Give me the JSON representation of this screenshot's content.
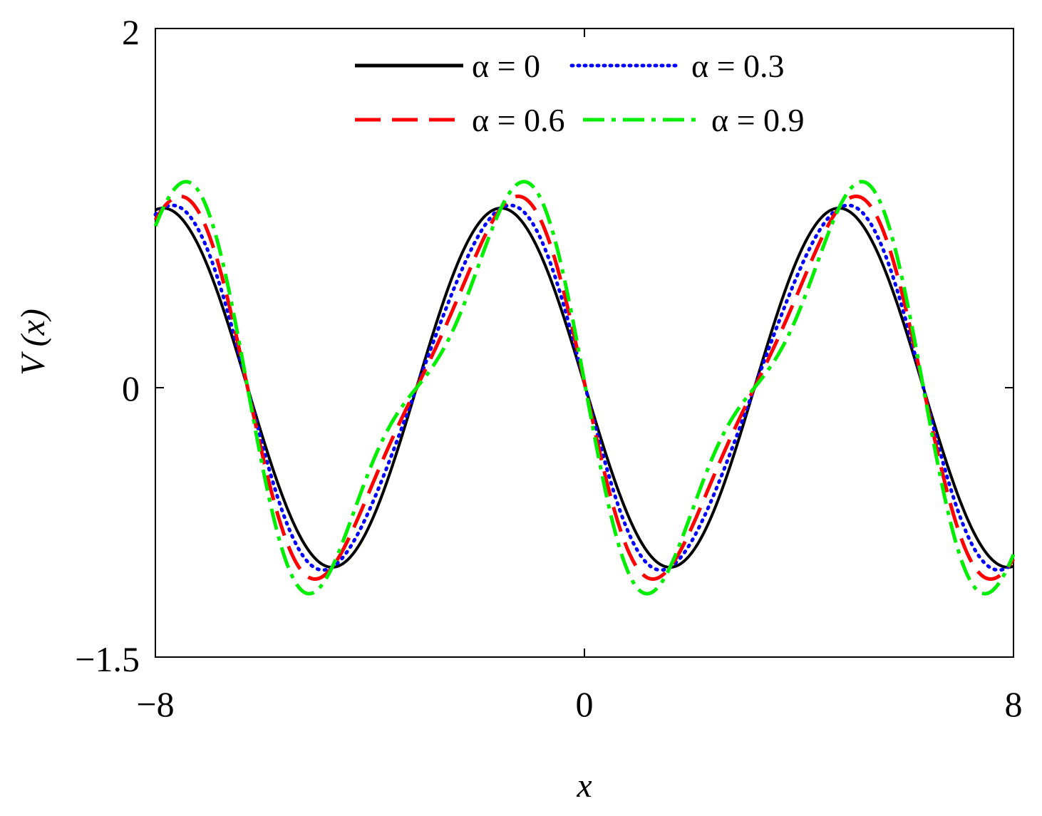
{
  "chart_data": {
    "type": "line",
    "title": "",
    "xlabel": "x",
    "ylabel": "V (x)",
    "xlim": [
      -8,
      8
    ],
    "ylim": [
      -1.5,
      2
    ],
    "xticks": [
      -8,
      0,
      8
    ],
    "xtick_labels": [
      "−8",
      "0",
      "8"
    ],
    "yticks": [
      -1.5,
      0,
      2
    ],
    "ytick_labels": [
      "−1.5",
      "0",
      "2"
    ],
    "grid": false,
    "legend_position": "top",
    "series": [
      {
        "name": "α = 0",
        "alpha": 0,
        "color": "#000000",
        "style": "solid"
      },
      {
        "name": "α = 0.3",
        "alpha": 0.3,
        "color": "#0000ff",
        "style": "dotted"
      },
      {
        "name": "α = 0.6",
        "alpha": 0.6,
        "color": "#ff0000",
        "style": "dashed"
      },
      {
        "name": "α = 0.9",
        "alpha": 0.9,
        "color": "#00ee00",
        "style": "dashdot"
      }
    ],
    "sample_x": [
      -8,
      -6,
      -4.8,
      -3,
      -1.6,
      0,
      1.6,
      3.2,
      4.7,
      6.3,
      8
    ],
    "sample_values": {
      "alpha_0": [
        1.0,
        0.0,
        -1.0,
        0.0,
        1.0,
        0.0,
        -1.0,
        0.0,
        1.0,
        0.0,
        -1.0
      ],
      "alpha_0.9": [
        0.85,
        0.0,
        -1.2,
        0.0,
        1.25,
        0.0,
        -1.2,
        0.0,
        1.25,
        0.0,
        -0.85
      ]
    }
  }
}
